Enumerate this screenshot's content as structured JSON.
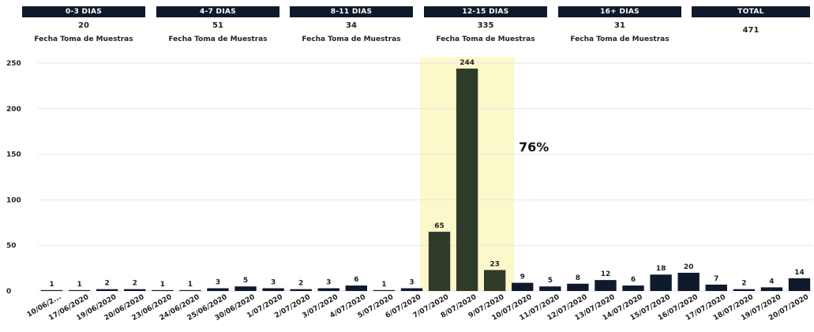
{
  "cards": [
    {
      "title": "0-3 DIAS",
      "value": "20",
      "subtitle": "Fecha Toma de Muestras"
    },
    {
      "title": "4-7 DIAS",
      "value": "51",
      "subtitle": "Fecha Toma de Muestras"
    },
    {
      "title": "8-11 DIAS",
      "value": "34",
      "subtitle": "Fecha Toma de Muestras"
    },
    {
      "title": "12-15 DIAS",
      "value": "335",
      "subtitle": "Fecha Toma de Muestras"
    },
    {
      "title": "16+ DIAS",
      "value": "31",
      "subtitle": "Fecha Toma de Muestras"
    },
    {
      "title": "TOTAL",
      "value": "471",
      "subtitle": ""
    }
  ],
  "annotation": "76%",
  "colors": {
    "bar": "#0e1a2b",
    "bar_highlight": "#2f3b2a",
    "highlight_band": "#fbf8c9",
    "grid": "#e6e6e6"
  },
  "chart_data": {
    "type": "bar",
    "categories": [
      "10/06/2...",
      "17/06/2020",
      "19/06/2020",
      "20/06/2020",
      "23/06/2020",
      "24/06/2020",
      "25/06/2020",
      "30/06/2020",
      "1/07/2020",
      "2/07/2020",
      "3/07/2020",
      "4/07/2020",
      "5/07/2020",
      "6/07/2020",
      "7/07/2020",
      "8/07/2020",
      "9/07/2020",
      "10/07/2020",
      "11/07/2020",
      "12/07/2020",
      "13/07/2020",
      "14/07/2020",
      "15/07/2020",
      "16/07/2020",
      "17/07/2020",
      "18/07/2020",
      "19/07/2020",
      "20/07/2020"
    ],
    "values": [
      1,
      1,
      2,
      2,
      1,
      1,
      3,
      5,
      3,
      2,
      3,
      6,
      1,
      3,
      65,
      244,
      23,
      9,
      5,
      8,
      12,
      6,
      18,
      20,
      7,
      2,
      4,
      14
    ],
    "highlighted_categories": [
      "7/07/2020",
      "8/07/2020",
      "9/07/2020"
    ],
    "yticks": [
      0,
      50,
      100,
      150,
      200,
      250
    ],
    "ylim": [
      0,
      250
    ],
    "grid": true
  }
}
